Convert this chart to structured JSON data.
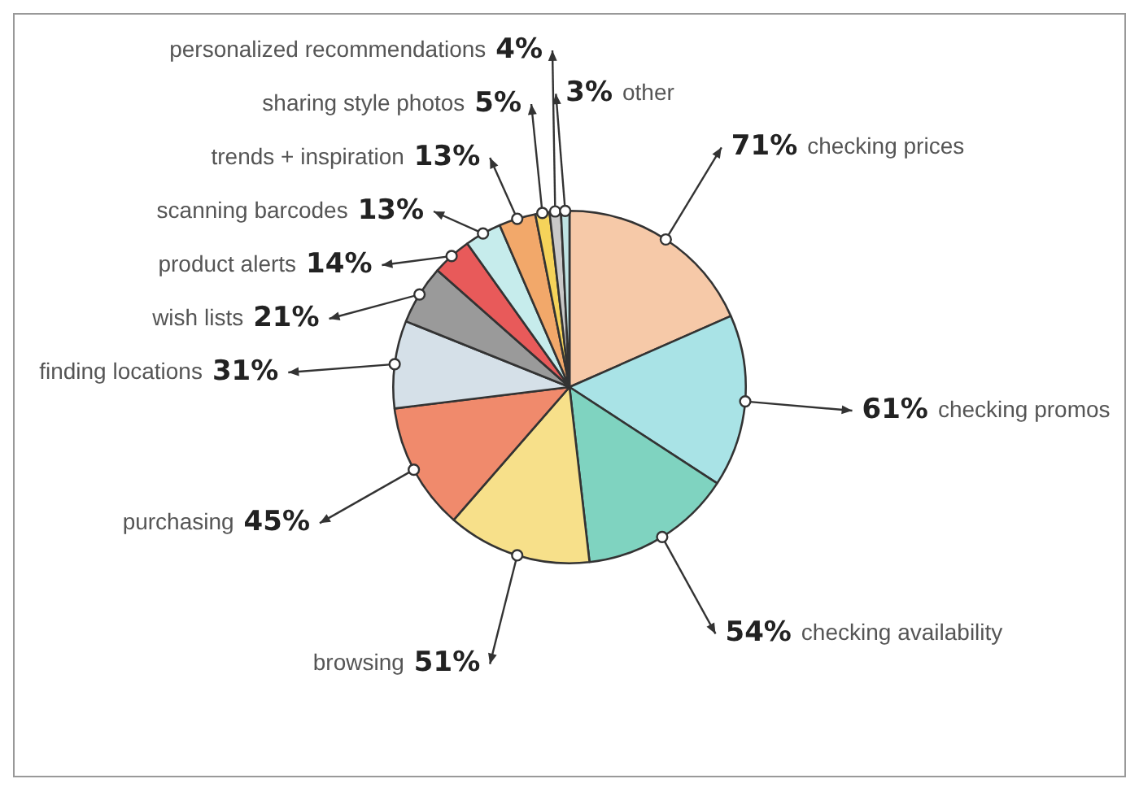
{
  "chart_data": {
    "type": "pie",
    "categories": [
      "checking prices",
      "checking promos",
      "checking availability",
      "browsing",
      "purchasing",
      "finding locations",
      "wish lists",
      "product alerts",
      "scanning barcodes",
      "trends + inspiration",
      "sharing style photos",
      "personalized recommendations",
      "other"
    ],
    "values": [
      71,
      61,
      54,
      51,
      45,
      31,
      21,
      14,
      13,
      13,
      5,
      4,
      3
    ],
    "value_labels": [
      "71%",
      "61%",
      "54%",
      "51%",
      "45%",
      "31%",
      "21%",
      "14%",
      "13%",
      "13%",
      "5%",
      "4%",
      "3%"
    ],
    "colors": [
      "#f6c9a8",
      "#a9e3e6",
      "#7fd3c0",
      "#f7e08a",
      "#f08a6c",
      "#d5e0e8",
      "#9a9a9a",
      "#e85a5a",
      "#c6ecec",
      "#f2a86a",
      "#f5d35a",
      "#c9c9c9",
      "#bfe3e3"
    ]
  }
}
